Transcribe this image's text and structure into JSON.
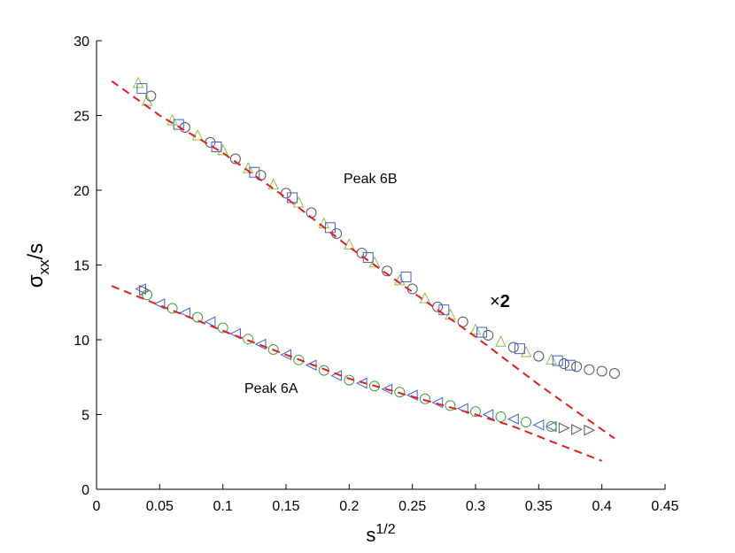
{
  "chart_data": {
    "type": "scatter",
    "xlabel": {
      "base": "s",
      "sup": "1/2"
    },
    "ylabel": {
      "base": "σ",
      "sub": "xx",
      "rest": "/s"
    },
    "annotations": {
      "peak_b": "Peak 6B",
      "peak_a": "Peak 6A",
      "times": "×",
      "factor": "2"
    },
    "xlim": [
      0,
      0.45
    ],
    "xticks": [
      0,
      0.05,
      0.1,
      0.15,
      0.2,
      0.25,
      0.3,
      0.35,
      0.4,
      0.45
    ],
    "ylim": [
      0,
      30
    ],
    "yticks": [
      0,
      5,
      10,
      15,
      20,
      25,
      30
    ],
    "series": [
      {
        "marker": "triangle-up",
        "color": "#8fbf3f",
        "x": [
          0.033,
          0.04,
          0.06,
          0.08,
          0.1,
          0.12,
          0.14,
          0.16,
          0.18,
          0.2,
          0.22,
          0.24,
          0.26,
          0.28,
          0.3,
          0.32,
          0.34,
          0.36
        ],
        "values": [
          27.2,
          26.0,
          24.7,
          23.7,
          22.7,
          21.5,
          20.4,
          19.2,
          17.8,
          16.4,
          15.2,
          14.0,
          12.8,
          11.7,
          10.7,
          9.9,
          9.2,
          8.7
        ]
      },
      {
        "marker": "circle",
        "color": "#555555",
        "x": [
          0.043,
          0.07,
          0.09,
          0.11,
          0.13,
          0.15,
          0.17,
          0.19,
          0.21,
          0.23,
          0.25,
          0.27,
          0.29,
          0.31,
          0.33,
          0.35,
          0.37,
          0.38,
          0.39,
          0.4,
          0.41
        ],
        "values": [
          26.3,
          24.2,
          23.2,
          22.1,
          21.0,
          19.8,
          18.5,
          17.1,
          15.8,
          14.6,
          13.4,
          12.2,
          11.2,
          10.3,
          9.5,
          8.9,
          8.4,
          8.2,
          8.0,
          7.9,
          7.75
        ]
      },
      {
        "marker": "square",
        "color": "#3f5fd0",
        "x": [
          0.036,
          0.065,
          0.095,
          0.125,
          0.155,
          0.185,
          0.215,
          0.245,
          0.275,
          0.305,
          0.335,
          0.365,
          0.375
        ],
        "values": [
          26.8,
          24.4,
          22.9,
          21.2,
          19.5,
          17.5,
          15.5,
          14.2,
          12.0,
          10.5,
          9.4,
          8.6,
          8.3
        ]
      },
      {
        "marker": "triangle-left",
        "color": "#3f5fd0",
        "x": [
          0.035,
          0.05,
          0.07,
          0.09,
          0.11,
          0.13,
          0.15,
          0.17,
          0.19,
          0.21,
          0.23,
          0.25,
          0.27,
          0.29,
          0.31,
          0.33,
          0.35,
          0.36
        ],
        "values": [
          13.4,
          12.4,
          11.8,
          11.2,
          10.4,
          9.7,
          9.0,
          8.3,
          7.6,
          7.1,
          6.7,
          6.3,
          5.8,
          5.4,
          5.0,
          4.7,
          4.3,
          4.2
        ]
      },
      {
        "marker": "triangle-right",
        "color": "#555555",
        "x": [
          0.038,
          0.37,
          0.38,
          0.39
        ],
        "values": [
          13.3,
          4.1,
          4.0,
          3.95
        ]
      },
      {
        "marker": "circle",
        "color": "#3fa03f",
        "x": [
          0.04,
          0.06,
          0.08,
          0.1,
          0.12,
          0.14,
          0.16,
          0.18,
          0.2,
          0.22,
          0.24,
          0.26,
          0.28,
          0.3,
          0.32,
          0.34,
          0.36
        ],
        "values": [
          13.0,
          12.1,
          11.5,
          10.8,
          10.05,
          9.35,
          8.65,
          7.95,
          7.3,
          6.9,
          6.5,
          6.05,
          5.6,
          5.2,
          4.85,
          4.5,
          4.2
        ]
      }
    ],
    "fits": [
      {
        "color": "#e02020",
        "x": [
          0.012,
          0.05,
          0.1,
          0.15,
          0.2,
          0.25,
          0.3,
          0.35,
          0.41
        ],
        "values": [
          27.3,
          25.0,
          22.5,
          19.5,
          16.2,
          13.2,
          10.2,
          7.0,
          3.4
        ]
      },
      {
        "color": "#e02020",
        "x": [
          0.012,
          0.1,
          0.2,
          0.3,
          0.33,
          0.36,
          0.4
        ],
        "values": [
          13.6,
          10.6,
          7.4,
          5.0,
          4.2,
          3.2,
          1.9
        ]
      }
    ]
  }
}
